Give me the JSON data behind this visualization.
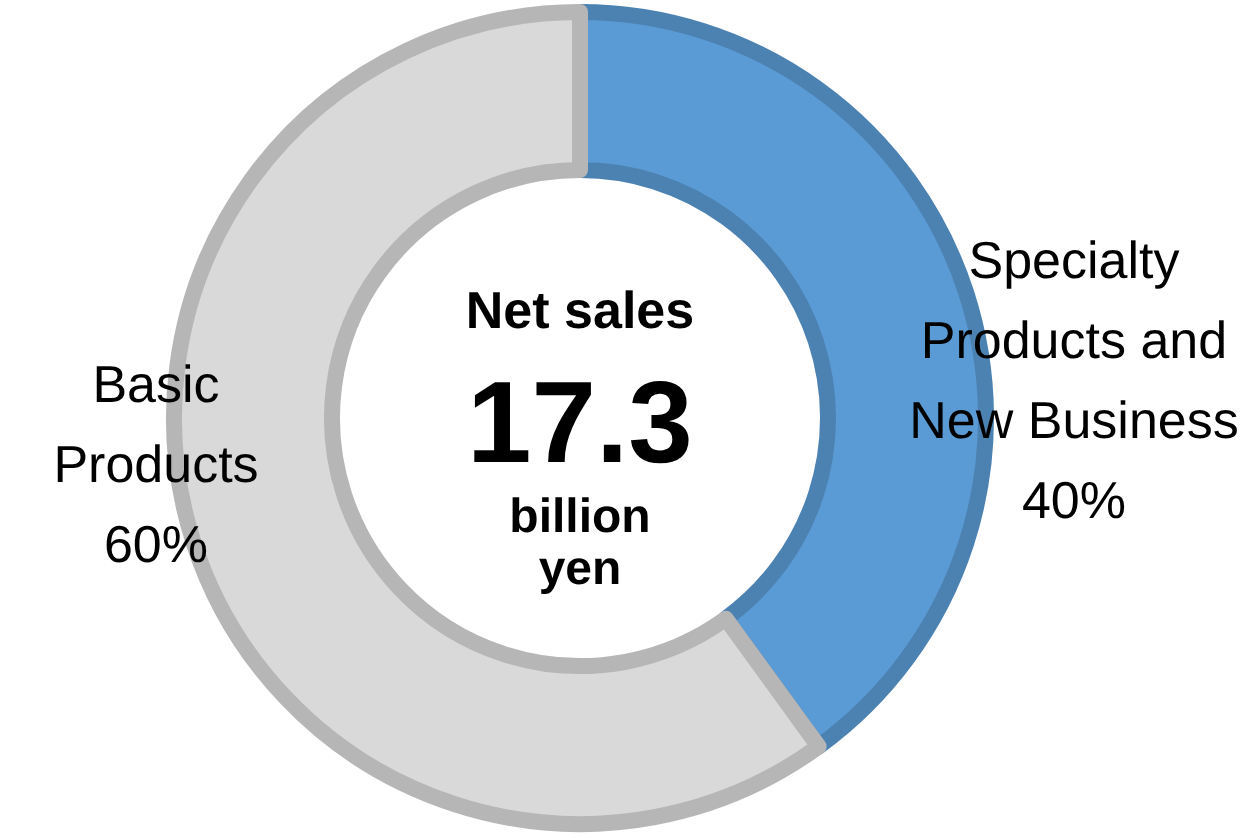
{
  "chart_data": {
    "type": "donut",
    "title": "Net sales",
    "annotations": [
      "17.3",
      "billion yen"
    ],
    "categories": [
      "Specialty Products and New Business",
      "Basic Products"
    ],
    "values": [
      40,
      60
    ],
    "colors": [
      "#5b9bd5",
      "#d9d9d9"
    ],
    "value_labels": [
      "40%",
      "60%"
    ]
  }
}
